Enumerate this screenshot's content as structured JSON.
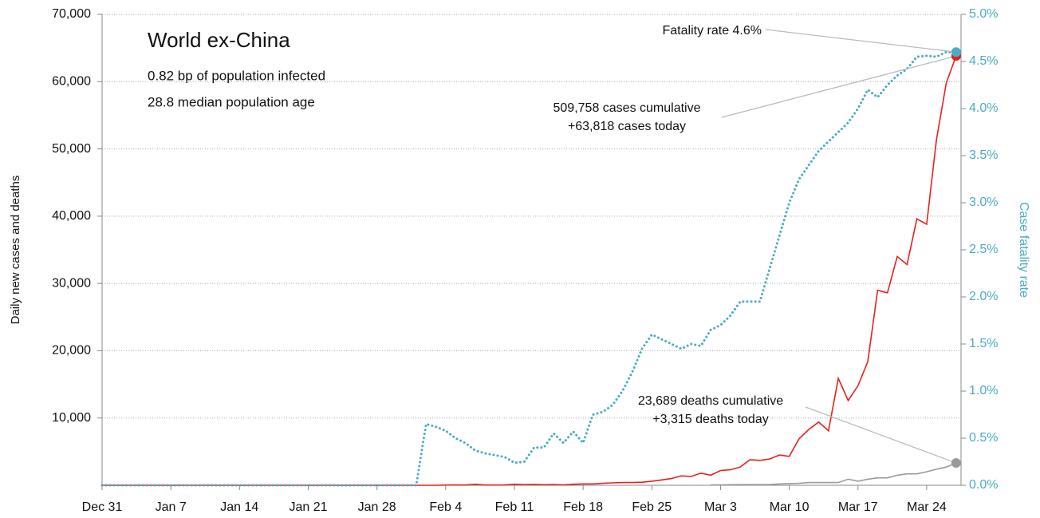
{
  "chart_data": {
    "type": "line",
    "title": "World ex-China",
    "subtitle": [
      "0.82 bp of population infected",
      "28.8 median population age"
    ],
    "y_label": "Daily new cases and deaths",
    "y2_label": "Case fatality rate",
    "categories": [
      "Dec 31",
      null,
      null,
      null,
      null,
      null,
      null,
      "Jan 7",
      null,
      null,
      null,
      null,
      null,
      null,
      "Jan 14",
      null,
      null,
      null,
      null,
      null,
      null,
      "Jan 21",
      null,
      null,
      null,
      null,
      null,
      null,
      "Jan 28",
      null,
      null,
      null,
      null,
      null,
      null,
      "Feb 4",
      null,
      null,
      null,
      null,
      null,
      null,
      "Feb 11",
      null,
      null,
      null,
      null,
      null,
      null,
      "Feb 18",
      null,
      null,
      null,
      null,
      null,
      null,
      "Feb 25",
      null,
      null,
      null,
      null,
      null,
      null,
      "Mar 3",
      null,
      null,
      null,
      null,
      null,
      null,
      "Mar 10",
      null,
      null,
      null,
      null,
      null,
      null,
      "Mar 17",
      null,
      null,
      null,
      null,
      null,
      null,
      "Mar 24",
      null,
      null,
      null
    ],
    "series": [
      {
        "name": "Daily new deaths",
        "color": "#9a9a9a",
        "style": "solid",
        "values": [
          null,
          null,
          null,
          null,
          null,
          null,
          null,
          null,
          null,
          null,
          null,
          null,
          null,
          null,
          null,
          null,
          null,
          null,
          null,
          null,
          null,
          null,
          null,
          null,
          null,
          null,
          null,
          null,
          null,
          null,
          null,
          null,
          null,
          null,
          null,
          null,
          null,
          null,
          null,
          null,
          null,
          null,
          null,
          null,
          null,
          null,
          null,
          null,
          null,
          null,
          null,
          null,
          null,
          null,
          null,
          null,
          null,
          null,
          null,
          null,
          null,
          null,
          50,
          60,
          80,
          100,
          100,
          100,
          100,
          200,
          250,
          300,
          400,
          400,
          400,
          400,
          900,
          600,
          900,
          1100,
          1100,
          1500,
          1700,
          1700,
          2000,
          2400,
          2700,
          3315
        ]
      },
      {
        "name": "Daily new cases",
        "color": "#e8201c",
        "style": "solid",
        "values": [
          0,
          0,
          0,
          0,
          0,
          0,
          0,
          0,
          0,
          0,
          0,
          0,
          0,
          0,
          0,
          0,
          0,
          0,
          0,
          0,
          0,
          0,
          0,
          0,
          0,
          0,
          0,
          0,
          0,
          0,
          0,
          0,
          0,
          0,
          0,
          30,
          50,
          30,
          150,
          40,
          30,
          50,
          150,
          100,
          130,
          80,
          120,
          60,
          150,
          200,
          200,
          300,
          350,
          400,
          400,
          450,
          600,
          800,
          1000,
          1400,
          1300,
          1800,
          1500,
          2200,
          2300,
          2700,
          3800,
          3700,
          3900,
          4500,
          4300,
          6900,
          8300,
          9400,
          8100,
          15900,
          12600,
          14800,
          18400,
          29000,
          28600,
          34000,
          32800,
          39600,
          38800,
          51400,
          59800,
          63818
        ]
      },
      {
        "name": "Case fatality rate",
        "color": "#4bacc6",
        "style": "dotted",
        "axis": "y2",
        "values": [
          0,
          0,
          0,
          0,
          0,
          0,
          0,
          0,
          0,
          0,
          0,
          0,
          0,
          0,
          0,
          0,
          0,
          0,
          0,
          0,
          0,
          0,
          0,
          0,
          0,
          0,
          0,
          0,
          0,
          0,
          0,
          0,
          0,
          0.65,
          0.62,
          0.58,
          0.5,
          0.45,
          0.37,
          0.34,
          0.32,
          0.3,
          0.24,
          0.25,
          0.4,
          0.4,
          0.55,
          0.45,
          0.57,
          0.45,
          0.75,
          0.78,
          0.85,
          1.0,
          1.2,
          1.45,
          1.6,
          1.55,
          1.5,
          1.45,
          1.5,
          1.48,
          1.65,
          1.7,
          1.8,
          1.95,
          1.95,
          1.95,
          2.3,
          2.65,
          3.0,
          3.25,
          3.4,
          3.55,
          3.65,
          3.75,
          3.85,
          4.0,
          4.2,
          4.12,
          4.25,
          4.35,
          4.42,
          4.55,
          4.56,
          4.55,
          4.6,
          4.6
        ]
      }
    ],
    "annotations": [
      [
        "Fatality rate 4.6%"
      ],
      [
        "509,758 cases cumulative",
        "+63,818 cases today"
      ],
      [
        "23,689 deaths cumulative",
        "+3,315 deaths today"
      ]
    ],
    "ylim": [
      0,
      70000
    ],
    "yticks": [
      {
        "value": 10000,
        "label": "10,000"
      },
      {
        "value": 20000,
        "label": "20,000"
      },
      {
        "value": 30000,
        "label": "30,000"
      },
      {
        "value": 40000,
        "label": "40,000"
      },
      {
        "value": 50000,
        "label": "50,000"
      },
      {
        "value": 60000,
        "label": "60,000"
      },
      {
        "value": 70000,
        "label": "70,000"
      }
    ],
    "y2lim": [
      0,
      5
    ],
    "y2ticks": [
      {
        "value": 0,
        "label": "0.0%"
      },
      {
        "value": 0.5,
        "label": "0.5%"
      },
      {
        "value": 1,
        "label": "1.0%"
      },
      {
        "value": 1.5,
        "label": "1.5%"
      },
      {
        "value": 2,
        "label": "2.0%"
      },
      {
        "value": 2.5,
        "label": "2.5%"
      },
      {
        "value": 3,
        "label": "3.0%"
      },
      {
        "value": 3.5,
        "label": "3.5%"
      },
      {
        "value": 4,
        "label": "4.0%"
      },
      {
        "value": 4.5,
        "label": "4.5%"
      },
      {
        "value": 5,
        "label": "5.0%"
      }
    ],
    "y2_color": "#4bacc6",
    "grid": true
  }
}
